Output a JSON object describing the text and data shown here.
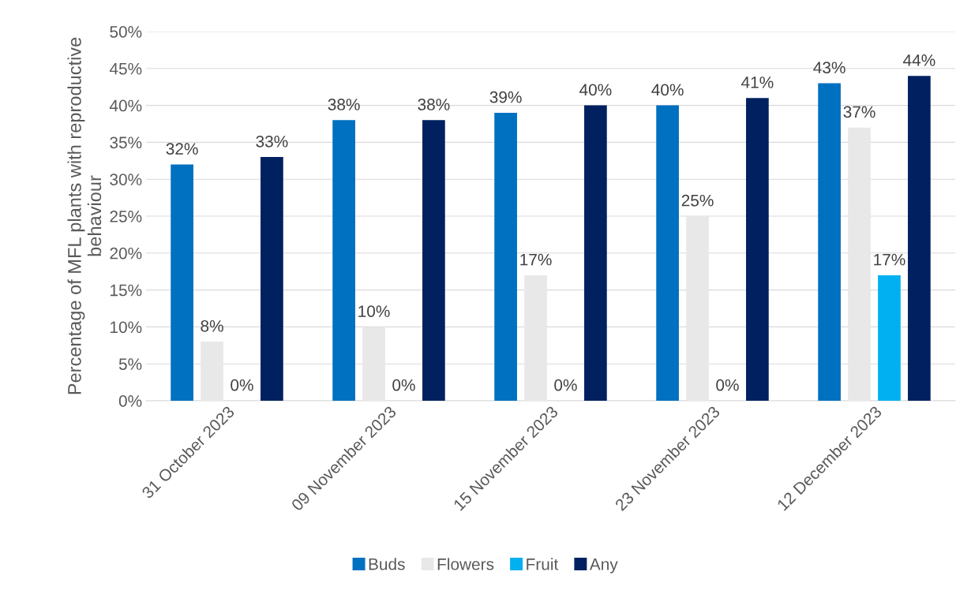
{
  "chart_data": {
    "type": "bar",
    "ylabel": "Percentage of MFL plants with reproductive behaviour",
    "categories": [
      "31 October 2023",
      "09 November 2023",
      "15 November 2023",
      "23 November 2023",
      "12 December 2023"
    ],
    "series": [
      {
        "name": "Buds",
        "color": "#0070c0",
        "values": [
          32,
          38,
          39,
          40,
          43
        ],
        "value_labels": [
          "32%",
          "38%",
          "39%",
          "40%",
          "43%"
        ]
      },
      {
        "name": "Flowers",
        "color": "#e8e8e8",
        "values": [
          8,
          10,
          17,
          25,
          37
        ],
        "value_labels": [
          "8%",
          "10%",
          "17%",
          "25%",
          "37%"
        ]
      },
      {
        "name": "Fruit",
        "color": "#00b0f0",
        "values": [
          0,
          0,
          0,
          0,
          17
        ],
        "value_labels": [
          "0%",
          "0%",
          "0%",
          "0%",
          "17%"
        ]
      },
      {
        "name": "Any",
        "color": "#002060",
        "values": [
          33,
          38,
          40,
          41,
          44
        ],
        "value_labels": [
          "33%",
          "38%",
          "40%",
          "41%",
          "44%"
        ]
      }
    ],
    "ylim": [
      0,
      50
    ],
    "yticks": [
      {
        "value": 0,
        "label": "0%"
      },
      {
        "value": 5,
        "label": "5%"
      },
      {
        "value": 10,
        "label": "10%"
      },
      {
        "value": 15,
        "label": "15%"
      },
      {
        "value": 20,
        "label": "20%"
      },
      {
        "value": 25,
        "label": "25%"
      },
      {
        "value": 30,
        "label": "30%"
      },
      {
        "value": 35,
        "label": "35%"
      },
      {
        "value": 40,
        "label": "40%"
      },
      {
        "value": 45,
        "label": "45%"
      },
      {
        "value": 50,
        "label": "50%"
      }
    ],
    "grid": "y",
    "legend": "bottom"
  }
}
